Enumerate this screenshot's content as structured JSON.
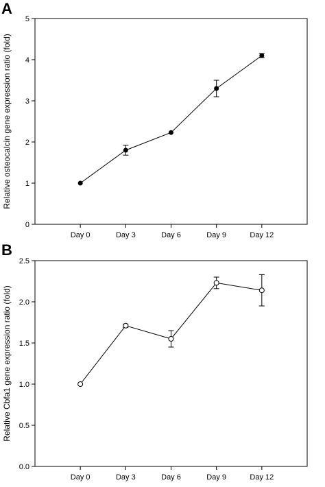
{
  "chart_data": [
    {
      "panel": "A",
      "type": "line",
      "ylabel": "Relative osteocalcin gene expression ratio (fold)",
      "categories": [
        "Day 0",
        "Day 3",
        "Day 6",
        "Day 9",
        "Day 12"
      ],
      "y_ticks": [
        "0",
        "1",
        "2",
        "3",
        "4",
        "5"
      ],
      "ylim": [
        0,
        5
      ],
      "grid": false,
      "marker": "filled-circle",
      "series": [
        {
          "values": [
            1.0,
            1.8,
            2.23,
            3.3,
            4.1
          ],
          "error": [
            0,
            0.12,
            0,
            0.2,
            0.05
          ]
        }
      ]
    },
    {
      "panel": "B",
      "type": "line",
      "ylabel": "Relative Cbfa1 gene expression ratio (fold)",
      "categories": [
        "Day 0",
        "Day 3",
        "Day 6",
        "Day 9",
        "Day 12"
      ],
      "y_ticks": [
        "0.0",
        "0.5",
        "1.0",
        "1.5",
        "2.0",
        "2.5"
      ],
      "ylim": [
        0,
        2.5
      ],
      "grid": false,
      "marker": "open-circle",
      "series": [
        {
          "values": [
            1.0,
            1.71,
            1.55,
            2.23,
            2.14
          ],
          "error": [
            0,
            0.02,
            0.1,
            0.07,
            0.19
          ]
        }
      ]
    }
  ]
}
